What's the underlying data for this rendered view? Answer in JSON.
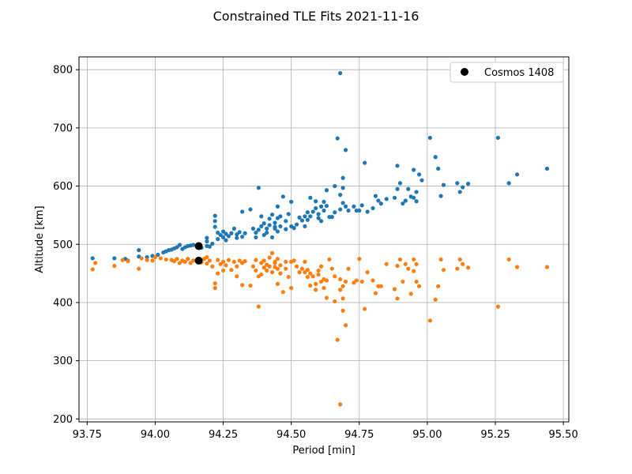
{
  "chart_data": {
    "type": "scatter",
    "title": "Constrained TLE Fits 2021-11-16",
    "xlabel": "Period [min]",
    "ylabel": "Altitude [km]",
    "xlim": [
      93.72,
      95.52
    ],
    "ylim": [
      195,
      822
    ],
    "xticks": [
      93.75,
      94.0,
      94.25,
      94.5,
      94.75,
      95.0,
      95.25,
      95.5
    ],
    "xtick_labels": [
      "93.75",
      "94.00",
      "94.25",
      "94.50",
      "94.75",
      "95.00",
      "95.25",
      "95.50"
    ],
    "yticks": [
      200,
      300,
      400,
      500,
      600,
      700,
      800
    ],
    "ytick_labels": [
      "200",
      "300",
      "400",
      "500",
      "600",
      "700",
      "800"
    ],
    "grid": true,
    "legend": {
      "position": "top-right",
      "entries": [
        "Cosmos 1408"
      ]
    },
    "colors": {
      "apogee": "#1f77b4",
      "perigee": "#ff7f0e",
      "cosmos": "#000000"
    },
    "series": [
      {
        "marker": "small-dot",
        "color": "#1f77b4",
        "points": [
          [
            93.77,
            476
          ],
          [
            93.85,
            476
          ],
          [
            93.89,
            475
          ],
          [
            93.9,
            472
          ],
          [
            93.94,
            490
          ],
          [
            93.94,
            479
          ],
          [
            93.97,
            478
          ],
          [
            93.99,
            480
          ],
          [
            94.01,
            482
          ],
          [
            94.03,
            486
          ],
          [
            94.04,
            488
          ],
          [
            94.05,
            490
          ],
          [
            94.06,
            491
          ],
          [
            94.07,
            493
          ],
          [
            94.08,
            495
          ],
          [
            94.09,
            499
          ],
          [
            94.1,
            492
          ],
          [
            94.11,
            495
          ],
          [
            94.12,
            497
          ],
          [
            94.13,
            498
          ],
          [
            94.14,
            499
          ],
          [
            94.17,
            494
          ],
          [
            94.19,
            497
          ],
          [
            94.19,
            505
          ],
          [
            94.19,
            511
          ],
          [
            94.2,
            496
          ],
          [
            94.21,
            501
          ],
          [
            94.22,
            540
          ],
          [
            94.22,
            549
          ],
          [
            94.22,
            530
          ],
          [
            94.23,
            520
          ],
          [
            94.23,
            509
          ],
          [
            94.24,
            516
          ],
          [
            94.25,
            512
          ],
          [
            94.25,
            522
          ],
          [
            94.26,
            518
          ],
          [
            94.26,
            507
          ],
          [
            94.27,
            514
          ],
          [
            94.28,
            519
          ],
          [
            94.29,
            527
          ],
          [
            94.3,
            511
          ],
          [
            94.3,
            517
          ],
          [
            94.31,
            521
          ],
          [
            94.32,
            513
          ],
          [
            94.32,
            556
          ],
          [
            94.33,
            519
          ],
          [
            94.35,
            560
          ],
          [
            94.36,
            527
          ],
          [
            94.37,
            520
          ],
          [
            94.37,
            512
          ],
          [
            94.38,
            525
          ],
          [
            94.38,
            597
          ],
          [
            94.39,
            531
          ],
          [
            94.39,
            548
          ],
          [
            94.4,
            536
          ],
          [
            94.4,
            516
          ],
          [
            94.41,
            527
          ],
          [
            94.41,
            520
          ],
          [
            94.42,
            533
          ],
          [
            94.42,
            544
          ],
          [
            94.43,
            551
          ],
          [
            94.43,
            512
          ],
          [
            94.44,
            527
          ],
          [
            94.44,
            530
          ],
          [
            94.44,
            537
          ],
          [
            94.45,
            565
          ],
          [
            94.45,
            545
          ],
          [
            94.45,
            522
          ],
          [
            94.46,
            548
          ],
          [
            94.46,
            531
          ],
          [
            94.47,
            582
          ],
          [
            94.48,
            526
          ],
          [
            94.48,
            540
          ],
          [
            94.49,
            552
          ],
          [
            94.5,
            573
          ],
          [
            94.5,
            531
          ],
          [
            94.51,
            528
          ],
          [
            94.52,
            534
          ],
          [
            94.53,
            546
          ],
          [
            94.54,
            541
          ],
          [
            94.55,
            531
          ],
          [
            94.55,
            548
          ],
          [
            94.56,
            542
          ],
          [
            94.56,
            555
          ],
          [
            94.57,
            580
          ],
          [
            94.57,
            548
          ],
          [
            94.58,
            556
          ],
          [
            94.59,
            562
          ],
          [
            94.59,
            574
          ],
          [
            94.6,
            545
          ],
          [
            94.6,
            552
          ],
          [
            94.61,
            565
          ],
          [
            94.61,
            540
          ],
          [
            94.62,
            573
          ],
          [
            94.62,
            558
          ],
          [
            94.63,
            593
          ],
          [
            94.63,
            566
          ],
          [
            94.64,
            547
          ],
          [
            94.65,
            547
          ],
          [
            94.66,
            555
          ],
          [
            94.66,
            600
          ],
          [
            94.67,
            682
          ],
          [
            94.68,
            794
          ],
          [
            94.68,
            560
          ],
          [
            94.68,
            585
          ],
          [
            94.69,
            597
          ],
          [
            94.69,
            614
          ],
          [
            94.69,
            571
          ],
          [
            94.7,
            662
          ],
          [
            94.7,
            565
          ],
          [
            94.71,
            558
          ],
          [
            94.73,
            565
          ],
          [
            94.74,
            558
          ],
          [
            94.75,
            558
          ],
          [
            94.76,
            567
          ],
          [
            94.77,
            640
          ],
          [
            94.78,
            556
          ],
          [
            94.8,
            562
          ],
          [
            94.81,
            583
          ],
          [
            94.82,
            575
          ],
          [
            94.83,
            570
          ],
          [
            94.85,
            578
          ],
          [
            94.88,
            580
          ],
          [
            94.89,
            595
          ],
          [
            94.89,
            635
          ],
          [
            94.9,
            605
          ],
          [
            94.91,
            570
          ],
          [
            94.92,
            575
          ],
          [
            94.93,
            595
          ],
          [
            94.94,
            582
          ],
          [
            94.95,
            628
          ],
          [
            94.95,
            580
          ],
          [
            94.96,
            590
          ],
          [
            94.96,
            574
          ],
          [
            94.97,
            620
          ],
          [
            94.98,
            610
          ],
          [
            95.01,
            683
          ],
          [
            95.03,
            650
          ],
          [
            95.04,
            630
          ],
          [
            95.05,
            583
          ],
          [
            95.06,
            602
          ],
          [
            95.11,
            605
          ],
          [
            95.12,
            590
          ],
          [
            95.13,
            598
          ],
          [
            95.15,
            604
          ],
          [
            95.26,
            683
          ],
          [
            95.3,
            605
          ],
          [
            95.33,
            620
          ],
          [
            95.44,
            630
          ]
        ]
      },
      {
        "marker": "small-dot",
        "color": "#ff7f0e",
        "points": [
          [
            93.77,
            457
          ],
          [
            93.78,
            468
          ],
          [
            93.85,
            463
          ],
          [
            93.88,
            473
          ],
          [
            93.9,
            471
          ],
          [
            93.94,
            458
          ],
          [
            93.95,
            476
          ],
          [
            93.97,
            473
          ],
          [
            93.99,
            472
          ],
          [
            94.0,
            478
          ],
          [
            94.02,
            476
          ],
          [
            94.04,
            474
          ],
          [
            94.06,
            473
          ],
          [
            94.07,
            471
          ],
          [
            94.08,
            475
          ],
          [
            94.09,
            468
          ],
          [
            94.1,
            472
          ],
          [
            94.11,
            470
          ],
          [
            94.12,
            475
          ],
          [
            94.13,
            468
          ],
          [
            94.14,
            472
          ],
          [
            94.17,
            469
          ],
          [
            94.18,
            475
          ],
          [
            94.19,
            478
          ],
          [
            94.19,
            467
          ],
          [
            94.2,
            472
          ],
          [
            94.21,
            462
          ],
          [
            94.22,
            433
          ],
          [
            94.22,
            425
          ],
          [
            94.23,
            450
          ],
          [
            94.23,
            473
          ],
          [
            94.24,
            466
          ],
          [
            94.25,
            470
          ],
          [
            94.25,
            455
          ],
          [
            94.26,
            464
          ],
          [
            94.27,
            473
          ],
          [
            94.28,
            456
          ],
          [
            94.29,
            470
          ],
          [
            94.3,
            445
          ],
          [
            94.3,
            462
          ],
          [
            94.31,
            472
          ],
          [
            94.32,
            468
          ],
          [
            94.32,
            430
          ],
          [
            94.33,
            471
          ],
          [
            94.35,
            429
          ],
          [
            94.36,
            462
          ],
          [
            94.37,
            473
          ],
          [
            94.37,
            455
          ],
          [
            94.38,
            445
          ],
          [
            94.38,
            393
          ],
          [
            94.39,
            468
          ],
          [
            94.39,
            448
          ],
          [
            94.4,
            460
          ],
          [
            94.4,
            472
          ],
          [
            94.41,
            465
          ],
          [
            94.41,
            455
          ],
          [
            94.42,
            477
          ],
          [
            94.42,
            462
          ],
          [
            94.43,
            452
          ],
          [
            94.43,
            485
          ],
          [
            94.44,
            468
          ],
          [
            94.44,
            461
          ],
          [
            94.44,
            470
          ],
          [
            94.45,
            432
          ],
          [
            94.45,
            458
          ],
          [
            94.45,
            475
          ],
          [
            94.46,
            450
          ],
          [
            94.46,
            464
          ],
          [
            94.47,
            418
          ],
          [
            94.48,
            470
          ],
          [
            94.48,
            458
          ],
          [
            94.49,
            444
          ],
          [
            94.5,
            425
          ],
          [
            94.5,
            470
          ],
          [
            94.51,
            472
          ],
          [
            94.52,
            462
          ],
          [
            94.53,
            452
          ],
          [
            94.54,
            458
          ],
          [
            94.55,
            470
          ],
          [
            94.55,
            452
          ],
          [
            94.56,
            456
          ],
          [
            94.56,
            444
          ],
          [
            94.57,
            429
          ],
          [
            94.57,
            450
          ],
          [
            94.58,
            445
          ],
          [
            94.59,
            432
          ],
          [
            94.59,
            422
          ],
          [
            94.6,
            455
          ],
          [
            94.6,
            448
          ],
          [
            94.61,
            436
          ],
          [
            94.61,
            462
          ],
          [
            94.62,
            425
          ],
          [
            94.62,
            440
          ],
          [
            94.63,
            408
          ],
          [
            94.63,
            438
          ],
          [
            94.64,
            474
          ],
          [
            94.65,
            458
          ],
          [
            94.66,
            445
          ],
          [
            94.66,
            402
          ],
          [
            94.67,
            336
          ],
          [
            94.68,
            225
          ],
          [
            94.68,
            440
          ],
          [
            94.68,
            422
          ],
          [
            94.69,
            407
          ],
          [
            94.69,
            386
          ],
          [
            94.69,
            428
          ],
          [
            94.7,
            361
          ],
          [
            94.7,
            436
          ],
          [
            94.71,
            458
          ],
          [
            94.73,
            434
          ],
          [
            94.74,
            438
          ],
          [
            94.75,
            475
          ],
          [
            94.76,
            436
          ],
          [
            94.77,
            389
          ],
          [
            94.78,
            452
          ],
          [
            94.8,
            438
          ],
          [
            94.81,
            416
          ],
          [
            94.82,
            428
          ],
          [
            94.83,
            428
          ],
          [
            94.85,
            466
          ],
          [
            94.88,
            423
          ],
          [
            94.89,
            463
          ],
          [
            94.89,
            407
          ],
          [
            94.9,
            474
          ],
          [
            94.91,
            436
          ],
          [
            94.92,
            466
          ],
          [
            94.93,
            458
          ],
          [
            94.94,
            415
          ],
          [
            94.95,
            454
          ],
          [
            94.95,
            474
          ],
          [
            94.96,
            466
          ],
          [
            94.96,
            436
          ],
          [
            94.97,
            428
          ],
          [
            95.01,
            369
          ],
          [
            95.03,
            405
          ],
          [
            95.04,
            428
          ],
          [
            95.05,
            474
          ],
          [
            95.06,
            456
          ],
          [
            95.11,
            458
          ],
          [
            95.12,
            474
          ],
          [
            95.13,
            466
          ],
          [
            95.15,
            460
          ],
          [
            95.26,
            393
          ],
          [
            95.3,
            474
          ],
          [
            95.33,
            461
          ],
          [
            95.44,
            461
          ]
        ]
      },
      {
        "name": "Cosmos 1408",
        "marker": "large-dot",
        "color": "#000000",
        "points": [
          [
            94.16,
            497
          ],
          [
            94.16,
            472
          ]
        ]
      }
    ]
  }
}
